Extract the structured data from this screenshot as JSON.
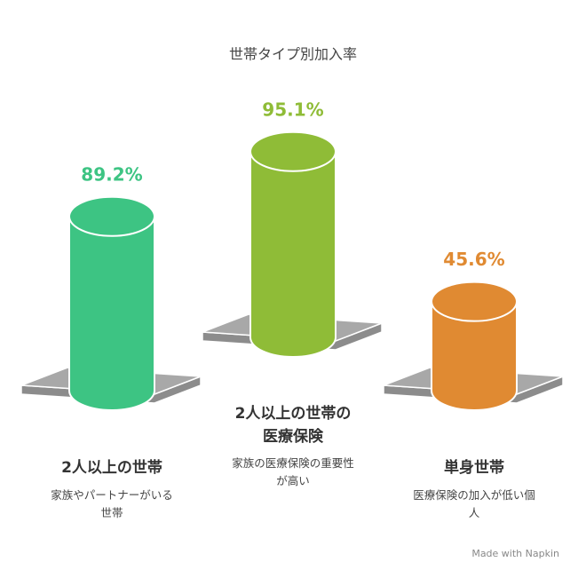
{
  "chart_data": {
    "type": "cylinder",
    "title": "世帯タイプ別加入率",
    "categories": [
      "2人以上の世帯",
      "2人以上の世帯の医療保険",
      "単身世帯"
    ],
    "descriptions": [
      "家族やパートナーがいる世帯",
      "家族の医療保険の重要性が高い",
      "医療保険の加入が低い個人"
    ],
    "values": [
      89.2,
      95.1,
      45.6
    ],
    "value_labels": [
      "89.2%",
      "95.1%",
      "45.6%"
    ],
    "colors": [
      "#3dc483",
      "#8fbc37",
      "#e08a32"
    ],
    "footer": "Made with Napkin"
  }
}
